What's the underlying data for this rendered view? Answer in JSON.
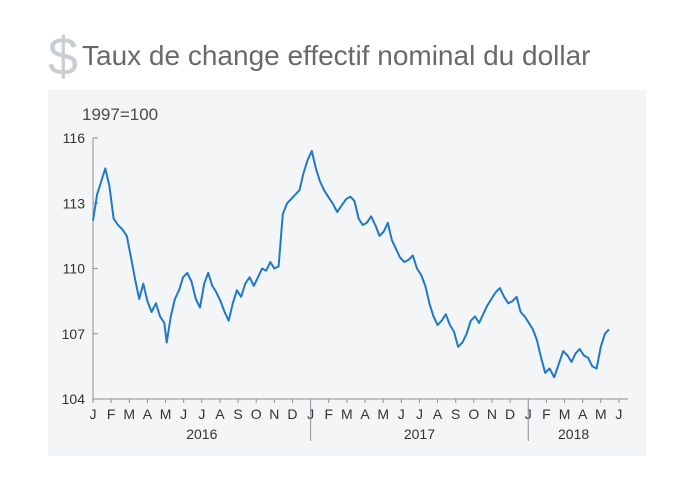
{
  "header": {
    "icon": "dollar-sign-icon",
    "icon_glyph": "$",
    "title": "Taux de change effectif nominal du dollar"
  },
  "colors": {
    "line": "#1f78c8",
    "panel": "#f4f5f6",
    "axis": "#8a8f94",
    "title": "#666a6e",
    "icon": "#c9ced3"
  },
  "chart_data": {
    "type": "line",
    "title": "Taux de change effectif nominal du dollar",
    "unit_label": "1997=100",
    "xlabel": "",
    "ylabel": "",
    "ylim": [
      104,
      116
    ],
    "yticks": [
      104,
      107,
      110,
      113,
      116
    ],
    "month_ticks": [
      "J",
      "F",
      "M",
      "A",
      "M",
      "J",
      "J",
      "A",
      "S",
      "O",
      "N",
      "D",
      "J",
      "F",
      "M",
      "A",
      "M",
      "J",
      "J",
      "A",
      "S",
      "O",
      "N",
      "D",
      "J",
      "F",
      "M",
      "A",
      "M",
      "J"
    ],
    "years": [
      {
        "label": "2016",
        "start_month": 0,
        "end_month": 12
      },
      {
        "label": "2017",
        "start_month": 12,
        "end_month": 24
      },
      {
        "label": "2018",
        "start_month": 24,
        "end_month": 29
      }
    ],
    "grid": false,
    "series": [
      {
        "name": "",
        "points": [
          [
            "2016-01-01",
            112.2
          ],
          [
            "2016-01-08",
            113.4
          ],
          [
            "2016-01-15",
            114.0
          ],
          [
            "2016-01-22",
            114.6
          ],
          [
            "2016-01-29",
            113.8
          ],
          [
            "2016-02-05",
            112.3
          ],
          [
            "2016-02-12",
            112.0
          ],
          [
            "2016-02-19",
            111.8
          ],
          [
            "2016-02-26",
            111.5
          ],
          [
            "2016-03-04",
            110.5
          ],
          [
            "2016-03-11",
            109.5
          ],
          [
            "2016-03-18",
            108.6
          ],
          [
            "2016-03-25",
            109.3
          ],
          [
            "2016-04-01",
            108.5
          ],
          [
            "2016-04-08",
            108.0
          ],
          [
            "2016-04-15",
            108.4
          ],
          [
            "2016-04-22",
            107.8
          ],
          [
            "2016-04-29",
            107.5
          ],
          [
            "2016-05-03",
            106.6
          ],
          [
            "2016-05-10",
            107.8
          ],
          [
            "2016-05-17",
            108.6
          ],
          [
            "2016-05-24",
            109.0
          ],
          [
            "2016-05-31",
            109.6
          ],
          [
            "2016-06-07",
            109.8
          ],
          [
            "2016-06-14",
            109.4
          ],
          [
            "2016-06-21",
            108.6
          ],
          [
            "2016-06-28",
            108.2
          ],
          [
            "2016-07-05",
            109.3
          ],
          [
            "2016-07-12",
            109.8
          ],
          [
            "2016-07-19",
            109.2
          ],
          [
            "2016-07-26",
            108.9
          ],
          [
            "2016-08-02",
            108.5
          ],
          [
            "2016-08-09",
            108.0
          ],
          [
            "2016-08-16",
            107.6
          ],
          [
            "2016-08-23",
            108.4
          ],
          [
            "2016-08-30",
            109.0
          ],
          [
            "2016-09-06",
            108.7
          ],
          [
            "2016-09-13",
            109.3
          ],
          [
            "2016-09-20",
            109.6
          ],
          [
            "2016-09-27",
            109.2
          ],
          [
            "2016-10-04",
            109.6
          ],
          [
            "2016-10-11",
            110.0
          ],
          [
            "2016-10-18",
            109.9
          ],
          [
            "2016-10-25",
            110.3
          ],
          [
            "2016-11-01",
            110.0
          ],
          [
            "2016-11-08",
            110.1
          ],
          [
            "2016-11-15",
            112.5
          ],
          [
            "2016-11-22",
            113.0
          ],
          [
            "2016-11-29",
            113.2
          ],
          [
            "2016-12-06",
            113.4
          ],
          [
            "2016-12-13",
            113.6
          ],
          [
            "2016-12-20",
            114.4
          ],
          [
            "2016-12-27",
            115.0
          ],
          [
            "2017-01-03",
            115.4
          ],
          [
            "2017-01-10",
            114.6
          ],
          [
            "2017-01-17",
            114.0
          ],
          [
            "2017-01-24",
            113.6
          ],
          [
            "2017-01-31",
            113.3
          ],
          [
            "2017-02-07",
            113.0
          ],
          [
            "2017-02-14",
            112.6
          ],
          [
            "2017-02-21",
            112.9
          ],
          [
            "2017-02-28",
            113.2
          ],
          [
            "2017-03-07",
            113.3
          ],
          [
            "2017-03-14",
            113.1
          ],
          [
            "2017-03-21",
            112.3
          ],
          [
            "2017-03-28",
            112.0
          ],
          [
            "2017-04-04",
            112.1
          ],
          [
            "2017-04-11",
            112.4
          ],
          [
            "2017-04-18",
            112.0
          ],
          [
            "2017-04-25",
            111.5
          ],
          [
            "2017-05-02",
            111.7
          ],
          [
            "2017-05-09",
            112.1
          ],
          [
            "2017-05-16",
            111.3
          ],
          [
            "2017-05-23",
            110.9
          ],
          [
            "2017-05-30",
            110.5
          ],
          [
            "2017-06-06",
            110.3
          ],
          [
            "2017-06-13",
            110.4
          ],
          [
            "2017-06-20",
            110.6
          ],
          [
            "2017-06-27",
            110.0
          ],
          [
            "2017-07-04",
            109.7
          ],
          [
            "2017-07-11",
            109.2
          ],
          [
            "2017-07-18",
            108.4
          ],
          [
            "2017-07-25",
            107.8
          ],
          [
            "2017-08-01",
            107.4
          ],
          [
            "2017-08-08",
            107.6
          ],
          [
            "2017-08-15",
            107.9
          ],
          [
            "2017-08-22",
            107.4
          ],
          [
            "2017-08-29",
            107.1
          ],
          [
            "2017-09-05",
            106.4
          ],
          [
            "2017-09-12",
            106.6
          ],
          [
            "2017-09-19",
            107.0
          ],
          [
            "2017-09-26",
            107.6
          ],
          [
            "2017-10-03",
            107.8
          ],
          [
            "2017-10-10",
            107.5
          ],
          [
            "2017-10-17",
            107.9
          ],
          [
            "2017-10-24",
            108.3
          ],
          [
            "2017-10-31",
            108.6
          ],
          [
            "2017-11-07",
            108.9
          ],
          [
            "2017-11-14",
            109.1
          ],
          [
            "2017-11-21",
            108.7
          ],
          [
            "2017-11-28",
            108.4
          ],
          [
            "2017-12-05",
            108.5
          ],
          [
            "2017-12-12",
            108.7
          ],
          [
            "2017-12-19",
            108.0
          ],
          [
            "2017-12-26",
            107.8
          ],
          [
            "2018-01-02",
            107.5
          ],
          [
            "2018-01-09",
            107.2
          ],
          [
            "2018-01-16",
            106.7
          ],
          [
            "2018-01-23",
            105.9
          ],
          [
            "2018-01-30",
            105.2
          ],
          [
            "2018-02-06",
            105.4
          ],
          [
            "2018-02-13",
            105.0
          ],
          [
            "2018-02-20",
            105.6
          ],
          [
            "2018-02-27",
            106.2
          ],
          [
            "2018-03-06",
            106.0
          ],
          [
            "2018-03-13",
            105.7
          ],
          [
            "2018-03-20",
            106.1
          ],
          [
            "2018-03-27",
            106.3
          ],
          [
            "2018-04-03",
            106.0
          ],
          [
            "2018-04-10",
            105.9
          ],
          [
            "2018-04-17",
            105.5
          ],
          [
            "2018-04-24",
            105.4
          ],
          [
            "2018-05-01",
            106.4
          ],
          [
            "2018-05-08",
            107.0
          ],
          [
            "2018-05-15",
            107.2
          ]
        ]
      }
    ]
  }
}
